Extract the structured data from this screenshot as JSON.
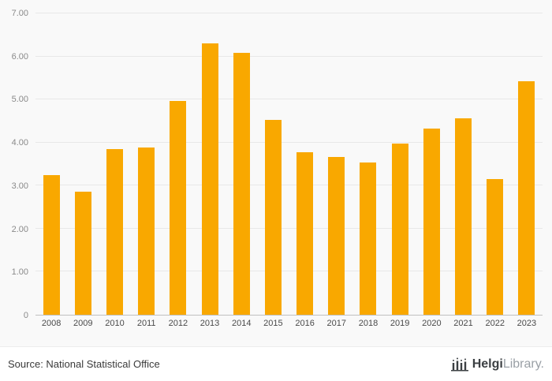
{
  "chart_data": {
    "type": "bar",
    "categories": [
      "2008",
      "2009",
      "2010",
      "2011",
      "2012",
      "2013",
      "2014",
      "2015",
      "2016",
      "2017",
      "2018",
      "2019",
      "2020",
      "2021",
      "2022",
      "2023"
    ],
    "values": [
      3.25,
      2.85,
      3.85,
      3.88,
      4.97,
      6.3,
      6.08,
      4.53,
      3.77,
      3.67,
      3.53,
      3.98,
      4.33,
      4.57,
      3.15,
      5.42
    ],
    "title": "",
    "xlabel": "",
    "ylabel": "",
    "ylim": [
      0,
      7
    ],
    "yticks": [
      "7.00",
      "6.00",
      "5.00",
      "4.00",
      "3.00",
      "2.00",
      "1.00",
      "0"
    ],
    "bar_color": "#F9A800",
    "grid": true,
    "legend": false
  },
  "footer": {
    "source": "Source: National Statistical Office",
    "logo": {
      "part1": "Helgi",
      "part2": "Library."
    }
  },
  "colors": {
    "background": "#f9f9f9",
    "footer_background": "#ffffff",
    "gridline": "#e8e8e8",
    "axis_line": "#c0c0c0",
    "bar": "#F9A800"
  }
}
